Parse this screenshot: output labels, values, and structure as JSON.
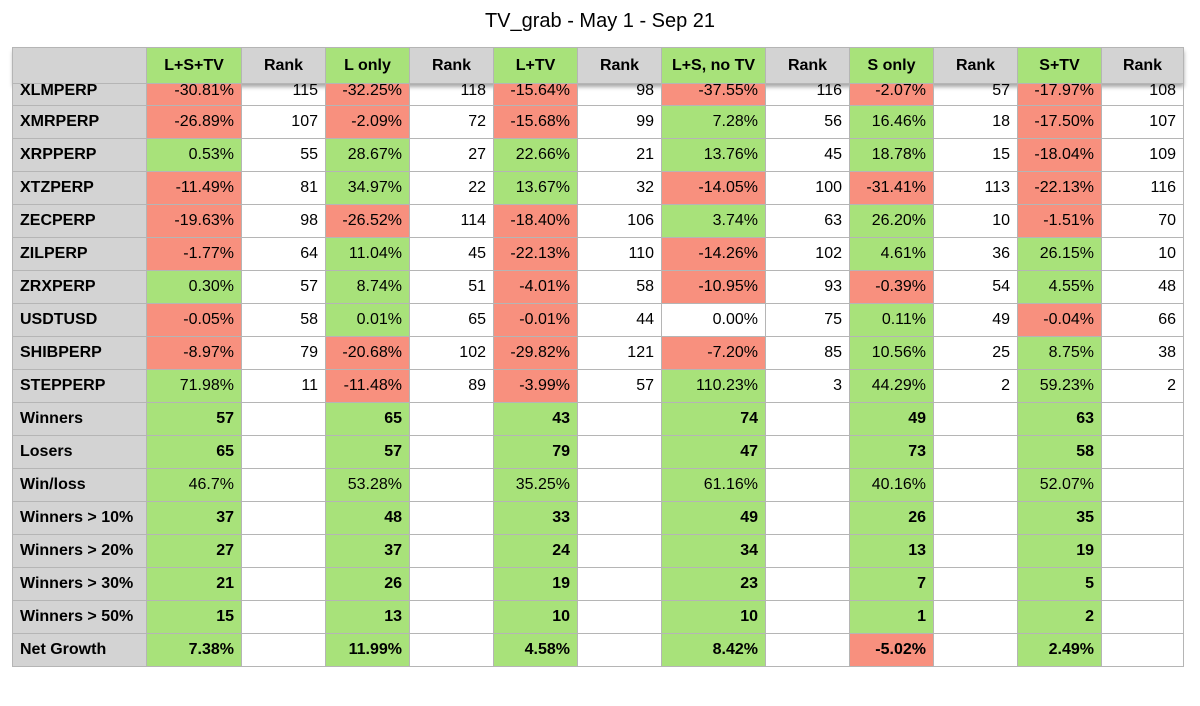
{
  "title": "TV_grab - May 1 - Sep 21",
  "colors": {
    "green": "#a8e27a",
    "red": "#f8907e",
    "header_gray": "#d3d3d3"
  },
  "headers": [
    "",
    "L+S+TV",
    "Rank",
    "L only",
    "Rank",
    "L+TV",
    "Rank",
    "L+S, no TV",
    "Rank",
    "S only",
    "Rank",
    "S+TV",
    "Rank"
  ],
  "rows": [
    {
      "name": "XLMPERP",
      "cells": [
        [
          "-30.81%",
          "r"
        ],
        [
          "115",
          ""
        ],
        [
          "-32.25%",
          "r"
        ],
        [
          "118",
          ""
        ],
        [
          "-15.64%",
          "r"
        ],
        [
          "98",
          ""
        ],
        [
          "-37.55%",
          "r"
        ],
        [
          "116",
          ""
        ],
        [
          "-2.07%",
          "r"
        ],
        [
          "57",
          ""
        ],
        [
          "-17.97%",
          "r"
        ],
        [
          "108",
          ""
        ]
      ]
    },
    {
      "name": "XMRPERP",
      "cells": [
        [
          "-26.89%",
          "r"
        ],
        [
          "107",
          ""
        ],
        [
          "-2.09%",
          "r"
        ],
        [
          "72",
          ""
        ],
        [
          "-15.68%",
          "r"
        ],
        [
          "99",
          ""
        ],
        [
          "7.28%",
          "g"
        ],
        [
          "56",
          ""
        ],
        [
          "16.46%",
          "g"
        ],
        [
          "18",
          ""
        ],
        [
          "-17.50%",
          "r"
        ],
        [
          "107",
          ""
        ]
      ]
    },
    {
      "name": "XRPPERP",
      "cells": [
        [
          "0.53%",
          "g"
        ],
        [
          "55",
          ""
        ],
        [
          "28.67%",
          "g"
        ],
        [
          "27",
          ""
        ],
        [
          "22.66%",
          "g"
        ],
        [
          "21",
          ""
        ],
        [
          "13.76%",
          "g"
        ],
        [
          "45",
          ""
        ],
        [
          "18.78%",
          "g"
        ],
        [
          "15",
          ""
        ],
        [
          "-18.04%",
          "r"
        ],
        [
          "109",
          ""
        ]
      ]
    },
    {
      "name": "XTZPERP",
      "cells": [
        [
          "-11.49%",
          "r"
        ],
        [
          "81",
          ""
        ],
        [
          "34.97%",
          "g"
        ],
        [
          "22",
          ""
        ],
        [
          "13.67%",
          "g"
        ],
        [
          "32",
          ""
        ],
        [
          "-14.05%",
          "r"
        ],
        [
          "100",
          ""
        ],
        [
          "-31.41%",
          "r"
        ],
        [
          "113",
          ""
        ],
        [
          "-22.13%",
          "r"
        ],
        [
          "116",
          ""
        ]
      ]
    },
    {
      "name": "ZECPERP",
      "cells": [
        [
          "-19.63%",
          "r"
        ],
        [
          "98",
          ""
        ],
        [
          "-26.52%",
          "r"
        ],
        [
          "114",
          ""
        ],
        [
          "-18.40%",
          "r"
        ],
        [
          "106",
          ""
        ],
        [
          "3.74%",
          "g"
        ],
        [
          "63",
          ""
        ],
        [
          "26.20%",
          "g"
        ],
        [
          "10",
          ""
        ],
        [
          "-1.51%",
          "r"
        ],
        [
          "70",
          ""
        ]
      ]
    },
    {
      "name": "ZILPERP",
      "cells": [
        [
          "-1.77%",
          "r"
        ],
        [
          "64",
          ""
        ],
        [
          "11.04%",
          "g"
        ],
        [
          "45",
          ""
        ],
        [
          "-22.13%",
          "r"
        ],
        [
          "110",
          ""
        ],
        [
          "-14.26%",
          "r"
        ],
        [
          "102",
          ""
        ],
        [
          "4.61%",
          "g"
        ],
        [
          "36",
          ""
        ],
        [
          "26.15%",
          "g"
        ],
        [
          "10",
          ""
        ]
      ]
    },
    {
      "name": "ZRXPERP",
      "cells": [
        [
          "0.30%",
          "g"
        ],
        [
          "57",
          ""
        ],
        [
          "8.74%",
          "g"
        ],
        [
          "51",
          ""
        ],
        [
          "-4.01%",
          "r"
        ],
        [
          "58",
          ""
        ],
        [
          "-10.95%",
          "r"
        ],
        [
          "93",
          ""
        ],
        [
          "-0.39%",
          "r"
        ],
        [
          "54",
          ""
        ],
        [
          "4.55%",
          "g"
        ],
        [
          "48",
          ""
        ]
      ]
    },
    {
      "name": "USDTUSD",
      "cells": [
        [
          "-0.05%",
          "r"
        ],
        [
          "58",
          ""
        ],
        [
          "0.01%",
          "g"
        ],
        [
          "65",
          ""
        ],
        [
          "-0.01%",
          "r"
        ],
        [
          "44",
          ""
        ],
        [
          "0.00%",
          "w"
        ],
        [
          "75",
          ""
        ],
        [
          "0.11%",
          "g"
        ],
        [
          "49",
          ""
        ],
        [
          "-0.04%",
          "r"
        ],
        [
          "66",
          ""
        ]
      ]
    },
    {
      "name": "SHIBPERP",
      "cells": [
        [
          "-8.97%",
          "r"
        ],
        [
          "79",
          ""
        ],
        [
          "-20.68%",
          "r"
        ],
        [
          "102",
          ""
        ],
        [
          "-29.82%",
          "r"
        ],
        [
          "121",
          ""
        ],
        [
          "-7.20%",
          "r"
        ],
        [
          "85",
          ""
        ],
        [
          "10.56%",
          "g"
        ],
        [
          "25",
          ""
        ],
        [
          "8.75%",
          "g"
        ],
        [
          "38",
          ""
        ]
      ]
    },
    {
      "name": "STEPPERP",
      "cells": [
        [
          "71.98%",
          "g"
        ],
        [
          "11",
          ""
        ],
        [
          "-11.48%",
          "r"
        ],
        [
          "89",
          ""
        ],
        [
          "-3.99%",
          "r"
        ],
        [
          "57",
          ""
        ],
        [
          "110.23%",
          "g"
        ],
        [
          "3",
          ""
        ],
        [
          "44.29%",
          "g"
        ],
        [
          "2",
          ""
        ],
        [
          "59.23%",
          "g"
        ],
        [
          "2",
          ""
        ]
      ]
    }
  ],
  "summary": [
    {
      "name": "Winners",
      "bold": true,
      "values": [
        [
          "57",
          "g"
        ],
        [
          "65",
          "g"
        ],
        [
          "43",
          "g"
        ],
        [
          "74",
          "g"
        ],
        [
          "49",
          "g"
        ],
        [
          "63",
          "g"
        ]
      ]
    },
    {
      "name": "Losers",
      "bold": true,
      "values": [
        [
          "65",
          "g"
        ],
        [
          "57",
          "g"
        ],
        [
          "79",
          "g"
        ],
        [
          "47",
          "g"
        ],
        [
          "73",
          "g"
        ],
        [
          "58",
          "g"
        ]
      ]
    },
    {
      "name": "Win/loss",
      "bold": false,
      "values": [
        [
          "46.7%",
          "g"
        ],
        [
          "53.28%",
          "g"
        ],
        [
          "35.25%",
          "g"
        ],
        [
          "61.16%",
          "g"
        ],
        [
          "40.16%",
          "g"
        ],
        [
          "52.07%",
          "g"
        ]
      ]
    },
    {
      "name": "Winners > 10%",
      "bold": true,
      "values": [
        [
          "37",
          "g"
        ],
        [
          "48",
          "g"
        ],
        [
          "33",
          "g"
        ],
        [
          "49",
          "g"
        ],
        [
          "26",
          "g"
        ],
        [
          "35",
          "g"
        ]
      ]
    },
    {
      "name": "Winners > 20%",
      "bold": true,
      "values": [
        [
          "27",
          "g"
        ],
        [
          "37",
          "g"
        ],
        [
          "24",
          "g"
        ],
        [
          "34",
          "g"
        ],
        [
          "13",
          "g"
        ],
        [
          "19",
          "g"
        ]
      ]
    },
    {
      "name": "Winners > 30%",
      "bold": true,
      "values": [
        [
          "21",
          "g"
        ],
        [
          "26",
          "g"
        ],
        [
          "19",
          "g"
        ],
        [
          "23",
          "g"
        ],
        [
          "7",
          "g"
        ],
        [
          "5",
          "g"
        ]
      ]
    },
    {
      "name": "Winners > 50%",
      "bold": true,
      "values": [
        [
          "15",
          "g"
        ],
        [
          "13",
          "g"
        ],
        [
          "10",
          "g"
        ],
        [
          "10",
          "g"
        ],
        [
          "1",
          "g"
        ],
        [
          "2",
          "g"
        ]
      ]
    },
    {
      "name": "Net Growth",
      "bold": true,
      "values": [
        [
          "7.38%",
          "g"
        ],
        [
          "11.99%",
          "g"
        ],
        [
          "4.58%",
          "g"
        ],
        [
          "8.42%",
          "g"
        ],
        [
          "-5.02%",
          "r"
        ],
        [
          "2.49%",
          "g"
        ]
      ]
    }
  ]
}
